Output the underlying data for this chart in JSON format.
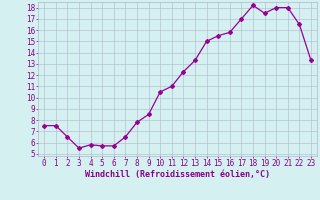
{
  "x": [
    0,
    1,
    2,
    3,
    4,
    5,
    6,
    7,
    8,
    9,
    10,
    11,
    12,
    13,
    14,
    15,
    16,
    17,
    18,
    19,
    20,
    21,
    22,
    23
  ],
  "y": [
    7.5,
    7.5,
    6.5,
    5.5,
    5.8,
    5.7,
    5.7,
    6.5,
    7.8,
    8.5,
    10.5,
    11.0,
    12.3,
    13.3,
    15.0,
    15.5,
    15.8,
    17.0,
    18.2,
    17.5,
    18.0,
    18.0,
    16.5,
    13.3
  ],
  "line_color": "#990099",
  "marker": "D",
  "markersize": 2,
  "linewidth": 0.9,
  "xlabel": "Windchill (Refroidissement éolien,°C)",
  "xlim": [
    -0.5,
    23.5
  ],
  "ylim": [
    4.8,
    18.5
  ],
  "yticks": [
    5,
    6,
    7,
    8,
    9,
    10,
    11,
    12,
    13,
    14,
    15,
    16,
    17,
    18
  ],
  "xticks": [
    0,
    1,
    2,
    3,
    4,
    5,
    6,
    7,
    8,
    9,
    10,
    11,
    12,
    13,
    14,
    15,
    16,
    17,
    18,
    19,
    20,
    21,
    22,
    23
  ],
  "bg_color": "#d4f0f0",
  "grid_color": "#b0b8cc",
  "tick_color": "#880088",
  "label_color": "#880088",
  "xlabel_fontsize": 6,
  "tick_fontsize": 5.5
}
